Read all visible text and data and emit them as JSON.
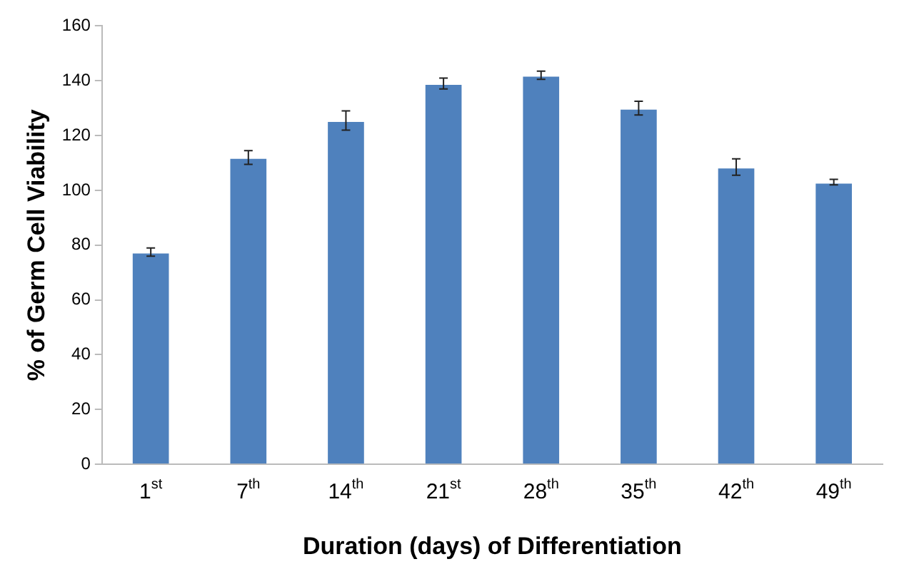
{
  "chart_data": {
    "type": "bar",
    "xlabel": "Duration (days) of Differentiation",
    "ylabel": "% of Germ Cell Viability",
    "categories": [
      "1$^{st}$",
      "7$^{th}$",
      "14$^{th}$",
      "21$^{st}$",
      "28$^{th}$",
      "35$^{th}$",
      "42$^{th}$",
      "49$^{th}$"
    ],
    "values": [
      77.5,
      112,
      125.5,
      139,
      142,
      130,
      108.5,
      103
    ],
    "errors": [
      1.5,
      2.5,
      3.5,
      2,
      1.5,
      2.5,
      3,
      1
    ],
    "color": "#4f81bd",
    "ylim": [
      0,
      160
    ],
    "yticks": [
      0,
      20,
      40,
      60,
      80,
      100,
      120,
      140,
      160
    ],
    "grid": false
  }
}
